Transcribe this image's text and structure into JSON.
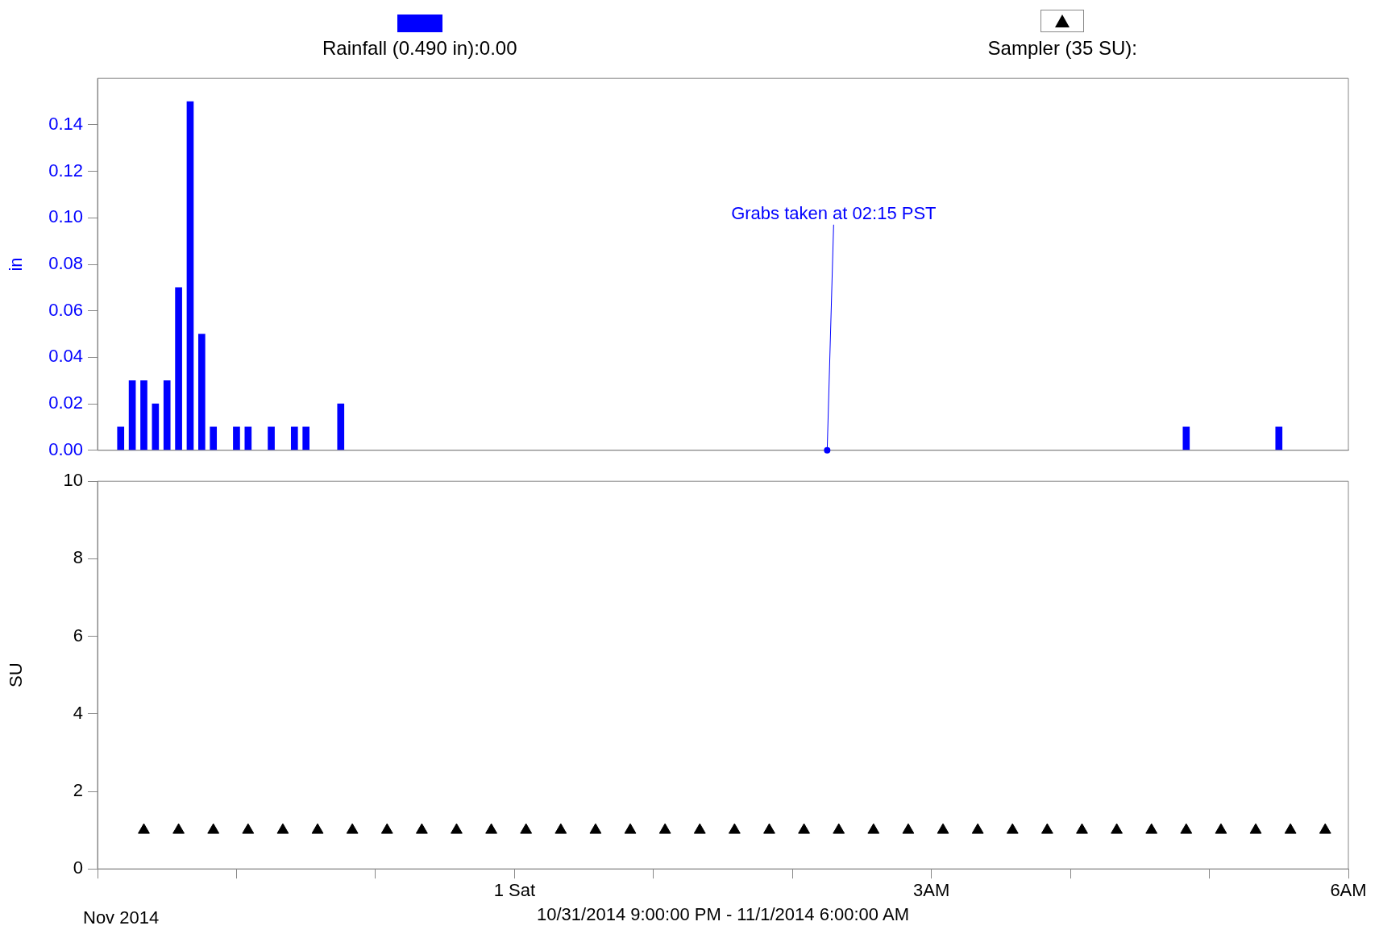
{
  "chart_data": [
    {
      "type": "bar",
      "ylabel": "in",
      "legend": "top",
      "tick_labels": "y",
      "x": [
        "2014-10-31T21:10",
        "2014-10-31T21:15",
        "2014-10-31T21:20",
        "2014-10-31T21:25",
        "2014-10-31T21:30",
        "2014-10-31T21:35",
        "2014-10-31T21:40",
        "2014-10-31T21:45",
        "2014-10-31T21:50",
        "2014-10-31T22:00",
        "2014-10-31T22:05",
        "2014-10-31T22:15",
        "2014-10-31T22:25",
        "2014-10-31T22:30",
        "2014-10-31T22:45",
        "2014-11-01T04:50",
        "2014-11-01T05:30"
      ],
      "series": [
        {
          "name": "Rainfall (0.490 in):0.00",
          "color": "#0000ff",
          "values": [
            0.01,
            0.03,
            0.03,
            0.02,
            0.03,
            0.07,
            0.15,
            0.05,
            0.01,
            0.01,
            0.01,
            0.01,
            0.01,
            0.01,
            0.02,
            0.01,
            0.01
          ]
        }
      ],
      "xlim": [
        "2014-10-31T21:00",
        "2014-11-01T06:00"
      ],
      "ylim": [
        0,
        0.16
      ],
      "yticks": [
        {
          "value": 0,
          "label": "0.00"
        },
        {
          "value": 0.02,
          "label": "0.02"
        },
        {
          "value": 0.04,
          "label": "0.04"
        },
        {
          "value": 0.06,
          "label": "0.06"
        },
        {
          "value": 0.08,
          "label": "0.08"
        },
        {
          "value": 0.1,
          "label": "0.10"
        },
        {
          "value": 0.12,
          "label": "0.12"
        },
        {
          "value": 0.14,
          "label": "0.14"
        }
      ],
      "annotations": [
        {
          "text": "Grabs taken at 02:15 PST",
          "x": "2014-11-01T02:15",
          "y": 0
        }
      ]
    },
    {
      "type": "scatter",
      "ylabel": "SU",
      "xlabel": "10/31/2014 9:00:00 PM - 11/1/2014 6:00:00 AM",
      "legend": "top",
      "marker": "triangle",
      "x": [
        "2014-10-31T21:20",
        "2014-10-31T21:35",
        "2014-10-31T21:50",
        "2014-10-31T22:05",
        "2014-10-31T22:20",
        "2014-10-31T22:35",
        "2014-10-31T22:50",
        "2014-10-31T23:05",
        "2014-10-31T23:20",
        "2014-10-31T23:35",
        "2014-10-31T23:50",
        "2014-11-01T00:05",
        "2014-11-01T00:20",
        "2014-11-01T00:35",
        "2014-11-01T00:50",
        "2014-11-01T01:05",
        "2014-11-01T01:20",
        "2014-11-01T01:35",
        "2014-11-01T01:50",
        "2014-11-01T02:05",
        "2014-11-01T02:20",
        "2014-11-01T02:35",
        "2014-11-01T02:50",
        "2014-11-01T03:05",
        "2014-11-01T03:20",
        "2014-11-01T03:35",
        "2014-11-01T03:50",
        "2014-11-01T04:05",
        "2014-11-01T04:20",
        "2014-11-01T04:35",
        "2014-11-01T04:50",
        "2014-11-01T05:05",
        "2014-11-01T05:20",
        "2014-11-01T05:35",
        "2014-11-01T05:50"
      ],
      "series": [
        {
          "name": "Sampler (35 SU):",
          "color": "#000000",
          "values": [
            1,
            1,
            1,
            1,
            1,
            1,
            1,
            1,
            1,
            1,
            1,
            1,
            1,
            1,
            1,
            1,
            1,
            1,
            1,
            1,
            1,
            1,
            1,
            1,
            1,
            1,
            1,
            1,
            1,
            1,
            1,
            1,
            1,
            1,
            1
          ]
        }
      ],
      "xlim": [
        "2014-10-31T21:00",
        "2014-11-01T06:00"
      ],
      "xticks": [
        {
          "value": "2014-10-31T21:00",
          "label": null
        },
        {
          "value": "2014-10-31T22:00",
          "label": null
        },
        {
          "value": "2014-10-31T23:00",
          "label": null
        },
        {
          "value": "2014-11-01T00:00",
          "label": "1 Sat"
        },
        {
          "value": "2014-11-01T01:00",
          "label": null
        },
        {
          "value": "2014-11-01T02:00",
          "label": null
        },
        {
          "value": "2014-11-01T03:00",
          "label": "3AM"
        },
        {
          "value": "2014-11-01T04:00",
          "label": null
        },
        {
          "value": "2014-11-01T05:00",
          "label": null
        },
        {
          "value": "2014-11-01T06:00",
          "label": "6AM"
        }
      ],
      "ylim": [
        0,
        10
      ],
      "yticks": [
        0,
        2,
        4,
        6,
        8,
        10
      ],
      "annotations": [
        "Nov 2014"
      ]
    }
  ]
}
